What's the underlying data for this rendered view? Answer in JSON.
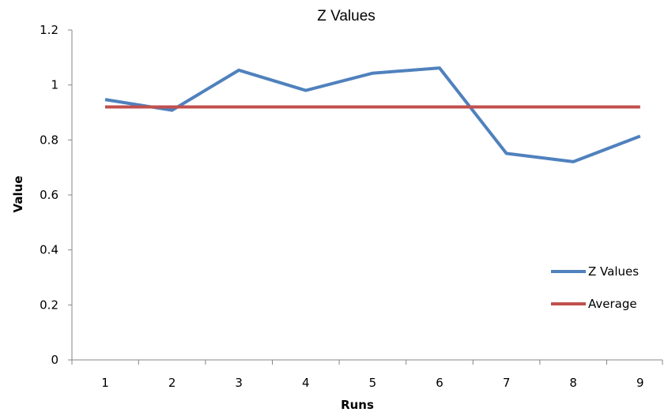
{
  "chart_data": {
    "type": "line",
    "title": "Z Values",
    "xlabel": "Runs",
    "ylabel": "Value",
    "x": [
      1,
      2,
      3,
      4,
      5,
      6,
      7,
      8,
      9
    ],
    "series": [
      {
        "name": "Z Values",
        "color": "#4f81bd",
        "values": [
          0.947,
          0.908,
          1.054,
          0.98,
          1.043,
          1.062,
          0.751,
          0.721,
          0.814
        ]
      },
      {
        "name": "Average",
        "color": "#c0504d",
        "values": [
          0.92,
          0.92,
          0.92,
          0.92,
          0.92,
          0.92,
          0.92,
          0.92,
          0.92
        ]
      }
    ],
    "ylim": [
      0,
      1.2
    ],
    "yticks": [
      "0",
      "0.2",
      "0.4",
      "0.6",
      "0.8",
      "1",
      "1.2"
    ],
    "xticks": [
      "1",
      "2",
      "3",
      "4",
      "5",
      "6",
      "7",
      "8",
      "9"
    ],
    "grid": false,
    "legend_position": "right"
  }
}
